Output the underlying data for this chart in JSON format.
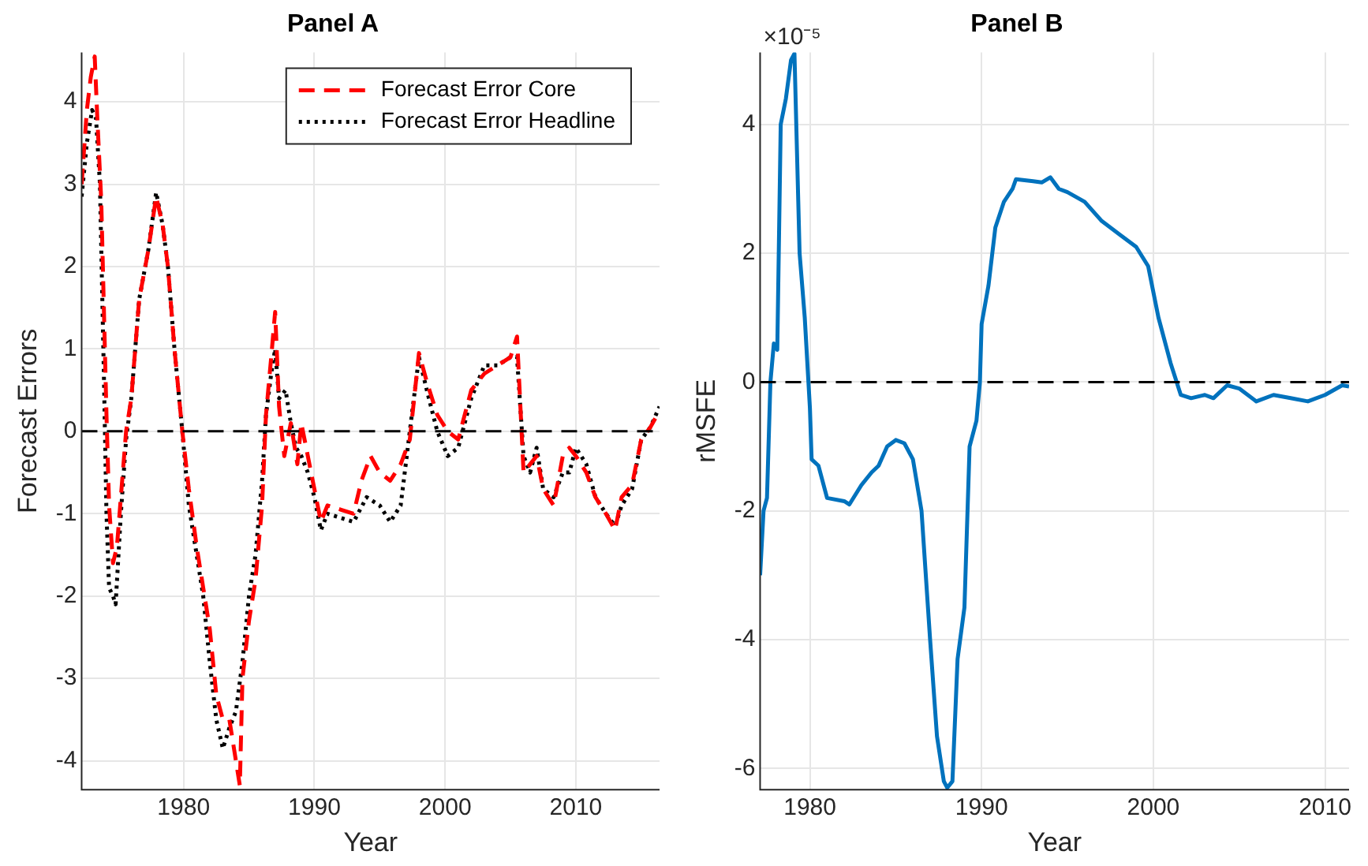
{
  "chart_data": [
    {
      "type": "line",
      "title": "Panel A",
      "xlabel": "Year",
      "ylabel": "Forecast Errors",
      "xlim": [
        1972.2,
        2016.4
      ],
      "xticks": [
        1980,
        1990,
        2000,
        2010
      ],
      "ylim": [
        -4.35,
        4.6
      ],
      "yticks": [
        -4,
        -3,
        -2,
        -1,
        0,
        1,
        2,
        3,
        4
      ],
      "grid": true,
      "legend": "top right",
      "marker": "none",
      "ref_lines": [
        {
          "axis": "y",
          "value": 0,
          "color": "#000000",
          "line_style": "dashed"
        }
      ],
      "series": [
        {
          "name": "Forecast Error Core",
          "color": "#ff0000",
          "line_style": "dashed",
          "x": [
            1972.2,
            1972.6,
            1972.9,
            1973.2,
            1973.4,
            1973.7,
            1973.9,
            1974.1,
            1974.3,
            1974.6,
            1974.9,
            1975.2,
            1975.6,
            1976.0,
            1976.6,
            1977.3,
            1977.9,
            1978.4,
            1978.8,
            1979.3,
            1979.9,
            1980.4,
            1981.0,
            1981.5,
            1982.0,
            1982.5,
            1983.0,
            1983.5,
            1984.0,
            1984.3,
            1984.5,
            1985.0,
            1985.5,
            1986.0,
            1986.3,
            1986.7,
            1987.0,
            1987.3,
            1987.7,
            1988.2,
            1988.7,
            1989.0,
            1989.5,
            1990.0,
            1990.5,
            1991.0,
            1992.0,
            1993.0,
            1993.6,
            1994.3,
            1995.0,
            1995.8,
            1996.6,
            1997.3,
            1998.0,
            1998.6,
            1999.4,
            2000.2,
            2001.0,
            2002.0,
            2003.0,
            2004.0,
            2005.0,
            2005.5,
            2006.0,
            2006.5,
            2007.0,
            2007.5,
            2008.3,
            2009.0,
            2009.5,
            2010.0,
            2010.8,
            2011.5,
            2012.3,
            2013.0,
            2013.5,
            2014.3,
            2015.0,
            2015.7,
            2016.4
          ],
          "values": [
            3.0,
            3.9,
            4.3,
            4.55,
            3.8,
            2.8,
            1.5,
            0.2,
            -0.9,
            -1.6,
            -1.4,
            -0.8,
            0.0,
            0.4,
            1.6,
            2.2,
            2.85,
            2.5,
            2.0,
            1.0,
            0.0,
            -0.7,
            -1.4,
            -1.9,
            -2.4,
            -3.2,
            -3.5,
            -3.5,
            -4.0,
            -4.3,
            -3.0,
            -2.3,
            -1.8,
            -0.9,
            0.2,
            0.9,
            1.45,
            0.3,
            -0.3,
            0.1,
            -0.4,
            0.1,
            -0.3,
            -0.7,
            -1.1,
            -0.9,
            -0.95,
            -1.0,
            -0.6,
            -0.3,
            -0.5,
            -0.6,
            -0.4,
            -0.1,
            0.95,
            0.6,
            0.2,
            0.0,
            -0.1,
            0.5,
            0.7,
            0.8,
            0.9,
            1.15,
            -0.5,
            -0.4,
            -0.3,
            -0.7,
            -0.9,
            -0.3,
            -0.2,
            -0.3,
            -0.5,
            -0.8,
            -1.0,
            -1.2,
            -0.8,
            -0.65,
            -0.1,
            0.05,
            0.25
          ]
        },
        {
          "name": "Forecast Error Headline",
          "color": "#000000",
          "line_style": "dotted",
          "x": [
            1972.2,
            1972.6,
            1973.0,
            1973.3,
            1973.6,
            1973.9,
            1974.1,
            1974.3,
            1974.6,
            1974.8,
            1975.2,
            1975.6,
            1976.0,
            1976.6,
            1977.3,
            1977.9,
            1978.4,
            1978.8,
            1979.3,
            1979.9,
            1980.4,
            1981.0,
            1981.5,
            1982.0,
            1982.5,
            1983.0,
            1983.5,
            1984.0,
            1984.5,
            1985.0,
            1985.5,
            1986.0,
            1986.3,
            1986.7,
            1987.0,
            1987.3,
            1987.8,
            1988.2,
            1988.6,
            1989.0,
            1989.5,
            1990.0,
            1990.5,
            1991.0,
            1992.0,
            1993.0,
            1994.0,
            1995.0,
            1995.8,
            1996.6,
            1997.3,
            1998.0,
            1998.6,
            1999.4,
            2000.2,
            2001.0,
            2002.0,
            2003.0,
            2004.0,
            2005.0,
            2005.5,
            2006.0,
            2006.5,
            2007.0,
            2007.5,
            2008.3,
            2009.0,
            2009.5,
            2010.0,
            2010.8,
            2011.5,
            2012.3,
            2013.0,
            2013.5,
            2014.3,
            2015.0,
            2015.7,
            2016.4
          ],
          "values": [
            2.85,
            3.5,
            3.9,
            3.8,
            3.0,
            0.7,
            -1.0,
            -1.9,
            -2.0,
            -2.1,
            -1.0,
            -0.1,
            0.4,
            1.6,
            2.2,
            2.9,
            2.5,
            2.0,
            1.0,
            0.0,
            -0.9,
            -1.5,
            -2.0,
            -2.8,
            -3.5,
            -3.85,
            -3.6,
            -3.4,
            -2.8,
            -2.0,
            -1.5,
            -0.6,
            0.2,
            0.7,
            1.0,
            0.4,
            0.5,
            0.1,
            -0.2,
            -0.3,
            -0.5,
            -0.8,
            -1.2,
            -1.0,
            -1.05,
            -1.1,
            -0.8,
            -0.9,
            -1.1,
            -0.9,
            0.0,
            0.9,
            0.5,
            0.0,
            -0.3,
            -0.2,
            0.4,
            0.8,
            0.8,
            0.9,
            0.9,
            -0.3,
            -0.5,
            -0.2,
            -0.7,
            -0.8,
            -0.5,
            -0.5,
            -0.2,
            -0.4,
            -0.8,
            -1.0,
            -1.15,
            -0.9,
            -0.7,
            -0.1,
            0.05,
            0.3
          ]
        }
      ]
    },
    {
      "type": "line",
      "title": "Panel B",
      "xlabel": "Year",
      "ylabel": "rMSFE",
      "annotations": [
        "×10⁻⁵"
      ],
      "xlim": [
        1977.1,
        2011.4
      ],
      "xticks": [
        1980,
        1990,
        2000,
        2010
      ],
      "ylim": [
        -6.33,
        5.12
      ],
      "yticks": [
        -6,
        -4,
        -2,
        0,
        2,
        4
      ],
      "grid": true,
      "marker": "none",
      "ref_lines": [
        {
          "axis": "y",
          "value": 0,
          "color": "#000000",
          "line_style": "dashed"
        }
      ],
      "series": [
        {
          "color": "#0072bd",
          "line_style": "solid",
          "x": [
            1977.1,
            1977.3,
            1977.5,
            1977.7,
            1977.9,
            1978.1,
            1978.3,
            1978.6,
            1978.9,
            1979.1,
            1979.4,
            1979.7,
            1980.0,
            1980.1,
            1980.5,
            1981.0,
            1982.0,
            1982.3,
            1983.0,
            1983.6,
            1984.0,
            1984.5,
            1985.0,
            1985.5,
            1986.0,
            1986.5,
            1987.0,
            1987.4,
            1987.8,
            1988.0,
            1988.3,
            1988.6,
            1989.0,
            1989.3,
            1989.7,
            1989.9,
            1990.0,
            1990.4,
            1990.8,
            1991.3,
            1991.8,
            1992.0,
            1993.0,
            1993.5,
            1994.0,
            1994.5,
            1995.0,
            1996.0,
            1997.0,
            1998.0,
            1999.0,
            1999.7,
            2000.3,
            2001.0,
            2001.6,
            2002.2,
            2003.0,
            2003.5,
            2004.3,
            2005.0,
            2006.0,
            2007.0,
            2008.0,
            2009.0,
            2010.0,
            2011.0,
            2011.4
          ],
          "values": [
            -3.0,
            -2.0,
            -1.8,
            0.0,
            0.6,
            0.5,
            4.0,
            4.4,
            5.0,
            5.1,
            2.0,
            1.0,
            -0.4,
            -1.2,
            -1.3,
            -1.8,
            -1.85,
            -1.9,
            -1.6,
            -1.4,
            -1.3,
            -1.0,
            -0.9,
            -0.95,
            -1.2,
            -2.0,
            -4.0,
            -5.5,
            -6.2,
            -6.3,
            -6.2,
            -4.3,
            -3.5,
            -1.0,
            -0.6,
            0.0,
            0.9,
            1.5,
            2.4,
            2.8,
            3.0,
            3.15,
            3.12,
            3.1,
            3.18,
            3.0,
            2.95,
            2.8,
            2.5,
            2.3,
            2.1,
            1.8,
            1.0,
            0.3,
            -0.2,
            -0.25,
            -0.2,
            -0.25,
            -0.05,
            -0.1,
            -0.3,
            -0.2,
            -0.25,
            -0.3,
            -0.2,
            -0.05,
            -0.07
          ]
        }
      ]
    }
  ]
}
